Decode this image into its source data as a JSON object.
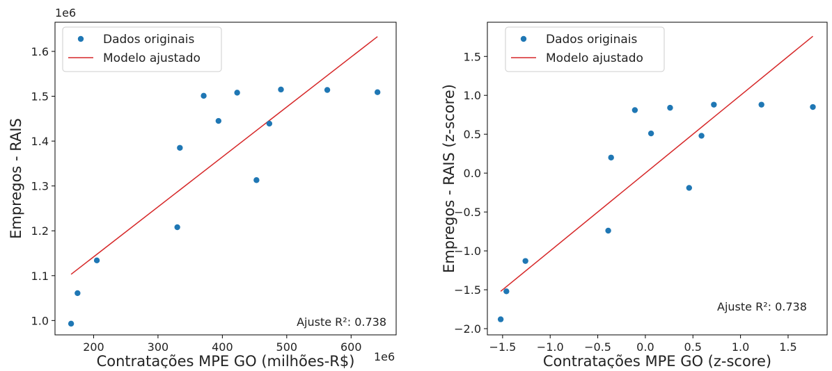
{
  "chart_data": [
    {
      "type": "scatter",
      "xlabel": "Contratações MPE GO (milhões-R$)",
      "ylabel": "Empregos - RAIS",
      "x_offset_text": "1e6",
      "y_offset_text": "1e6",
      "xlim": [
        140,
        670
      ],
      "ylim": [
        0.968,
        1.665
      ],
      "x_ticks": [
        200,
        300,
        400,
        500,
        600
      ],
      "y_ticks": [
        1.0,
        1.1,
        1.2,
        1.3,
        1.4,
        1.5,
        1.6
      ],
      "x_tick_labels": [
        "200",
        "300",
        "400",
        "500",
        "600"
      ],
      "y_tick_labels": [
        "1.0",
        "1.1",
        "1.2",
        "1.3",
        "1.4",
        "1.5",
        "1.6"
      ],
      "grid": false,
      "legend_position": "top-left",
      "annotation": "Ajuste R²: 0.738",
      "series": [
        {
          "name": "Dados originais",
          "kind": "scatter",
          "color": "#1f77b4",
          "x": [
            165,
            175,
            205,
            330,
            334,
            371,
            394,
            423,
            453,
            473,
            491,
            563,
            641
          ],
          "y": [
            0.993,
            1.061,
            1.134,
            1.208,
            1.385,
            1.501,
            1.445,
            1.508,
            1.313,
            1.439,
            1.515,
            1.514,
            1.509
          ]
        },
        {
          "name": "Modelo ajustado",
          "kind": "line",
          "color": "#d62728",
          "x": [
            165,
            641
          ],
          "y": [
            1.103,
            1.633
          ]
        }
      ]
    },
    {
      "type": "scatter",
      "xlabel": "Contratações MPE GO (z-score)",
      "ylabel": "Empregos - RAIS (z-score)",
      "xlim": [
        -1.66,
        1.91
      ],
      "ylim": [
        -2.08,
        1.94
      ],
      "x_ticks": [
        -1.5,
        -1.0,
        -0.5,
        0.0,
        0.5,
        1.0,
        1.5
      ],
      "y_ticks": [
        -2.0,
        -1.5,
        -1.0,
        -0.5,
        0.0,
        0.5,
        1.0,
        1.5
      ],
      "x_tick_labels": [
        "−1.5",
        "−1.0",
        "−0.5",
        "0.0",
        "0.5",
        "1.0",
        "1.5"
      ],
      "y_tick_labels": [
        "−2.0",
        "−1.5",
        "−1.0",
        "−0.5",
        "0.0",
        "0.5",
        "1.0",
        "1.5"
      ],
      "grid": false,
      "legend_position": "top-left",
      "annotation": "Ajuste R²: 0.738",
      "series": [
        {
          "name": "Dados originais",
          "kind": "scatter",
          "color": "#1f77b4",
          "x": [
            -1.52,
            -1.46,
            -1.26,
            -0.39,
            -0.36,
            -0.11,
            0.06,
            0.26,
            0.46,
            0.59,
            0.72,
            1.22,
            1.76
          ],
          "y": [
            -1.88,
            -1.52,
            -1.13,
            -0.74,
            0.2,
            0.81,
            0.51,
            0.84,
            -0.19,
            0.48,
            0.88,
            0.88,
            0.85
          ]
        },
        {
          "name": "Modelo ajustado",
          "kind": "line",
          "color": "#d62728",
          "x": [
            -1.52,
            1.76
          ],
          "y": [
            -1.52,
            1.76
          ]
        }
      ]
    }
  ]
}
